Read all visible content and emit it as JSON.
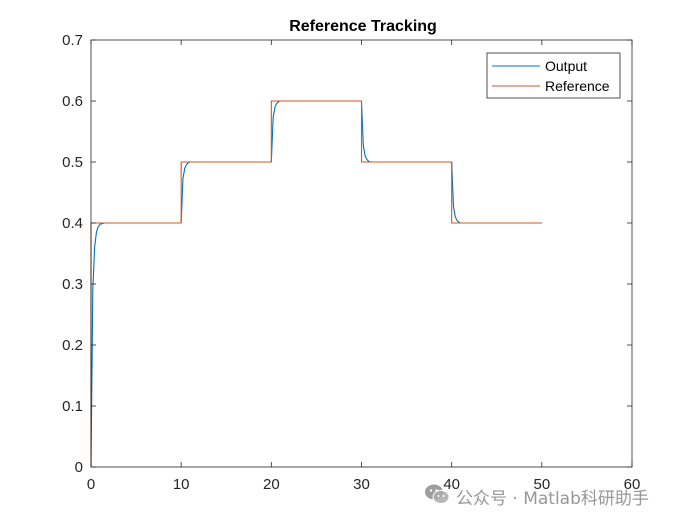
{
  "chart_data": {
    "type": "line",
    "title": "Reference Tracking",
    "xlabel": "",
    "ylabel": "",
    "xlim": [
      0,
      60
    ],
    "ylim": [
      0,
      0.7
    ],
    "xticks": [
      0,
      10,
      20,
      30,
      40,
      50,
      60
    ],
    "xtick_labels": [
      "0",
      "10",
      "20",
      "30",
      "40",
      "50",
      "60"
    ],
    "yticks": [
      0,
      0.1,
      0.2,
      0.3,
      0.4,
      0.5,
      0.6,
      0.7
    ],
    "ytick_labels": [
      "0",
      "0.1",
      "0.2",
      "0.3",
      "0.4",
      "0.5",
      "0.6",
      "0.7"
    ],
    "grid": false,
    "legend_position": "top-right",
    "series": [
      {
        "name": "Output",
        "color": "#0072BD",
        "x": [
          0,
          0.2,
          0.4,
          0.6,
          0.8,
          1,
          1.5,
          2,
          10,
          10.2,
          10.4,
          10.6,
          10.8,
          11,
          11.5,
          12,
          20,
          20.2,
          20.4,
          20.6,
          20.8,
          21,
          21.5,
          22,
          30,
          30.2,
          30.4,
          30.6,
          30.8,
          31,
          31.5,
          32,
          40,
          40.2,
          40.4,
          40.6,
          40.8,
          41,
          41.5,
          42,
          50
        ],
        "y": [
          0,
          0.29,
          0.36,
          0.385,
          0.394,
          0.398,
          0.4,
          0.4,
          0.4,
          0.473,
          0.49,
          0.496,
          0.499,
          0.5,
          0.5,
          0.5,
          0.5,
          0.573,
          0.59,
          0.596,
          0.599,
          0.6,
          0.6,
          0.6,
          0.6,
          0.527,
          0.51,
          0.504,
          0.501,
          0.5,
          0.5,
          0.5,
          0.5,
          0.427,
          0.41,
          0.404,
          0.401,
          0.4,
          0.4,
          0.4,
          0.4
        ]
      },
      {
        "name": "Reference",
        "color": "#D95319",
        "x": [
          0,
          0,
          10,
          10,
          20,
          20,
          30,
          30,
          40,
          40,
          50
        ],
        "y": [
          0,
          0.4,
          0.4,
          0.5,
          0.5,
          0.6,
          0.6,
          0.5,
          0.5,
          0.4,
          0.4
        ]
      }
    ]
  },
  "watermark": {
    "text": "公众号 · Matlab科研助手",
    "icon": "wechat-icon"
  }
}
